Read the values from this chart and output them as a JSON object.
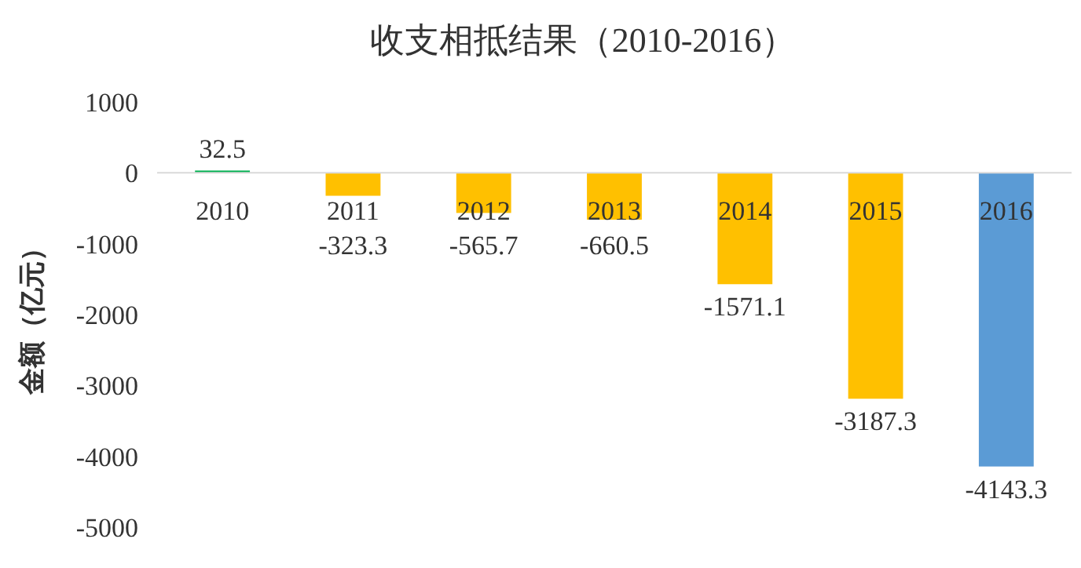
{
  "chart_data": {
    "type": "bar",
    "title": "收支相抵结果（2010-2016）",
    "ylabel": "金额（亿元）",
    "categories": [
      "2010",
      "2011",
      "2012",
      "2013",
      "2014",
      "2015",
      "2016"
    ],
    "values": [
      32.5,
      -323.3,
      -565.7,
      -660.5,
      -1571.1,
      -3187.3,
      -4143.3
    ],
    "colors": [
      "#00b050",
      "#ffc000",
      "#ffc000",
      "#ffc000",
      "#ffc000",
      "#ffc000",
      "#5b9bd5"
    ],
    "ylim": [
      -5000,
      1000
    ],
    "yticks": [
      -5000,
      -4000,
      -3000,
      -2000,
      -1000,
      0,
      1000
    ],
    "grid": false,
    "data_labels": true
  }
}
